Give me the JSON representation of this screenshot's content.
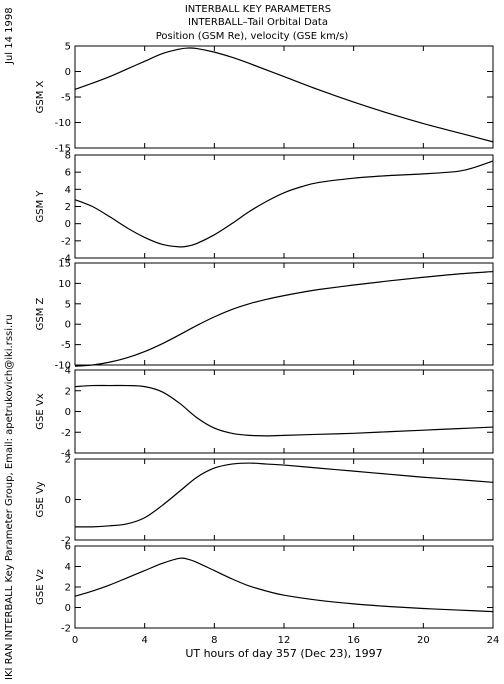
{
  "header": {
    "line1": "INTERBALL KEY PARAMETERS",
    "line2": "INTERBALL–Tail Orbital Data",
    "line3": "Position (GSM Re), velocity (GSE km/s)"
  },
  "side": {
    "date": "Jul 14 1998",
    "credit": "IKI RAN INTERBALL Key Parameter Group, Email: apetrukovich@iki.rssi.ru"
  },
  "chart_data": [
    {
      "type": "line",
      "ylabel": "GSM X",
      "xlim": [
        0,
        24
      ],
      "ylim": [
        -15,
        5
      ],
      "yticks": [
        5,
        0,
        -5,
        -10,
        -15
      ],
      "x": [
        0,
        1,
        2,
        3,
        4,
        5,
        6,
        6.5,
        7,
        8,
        9,
        10,
        12,
        14,
        16,
        18,
        20,
        22,
        24
      ],
      "series": [
        {
          "values": [
            -3.5,
            -2.3,
            -1.0,
            0.5,
            2.0,
            3.5,
            4.4,
            4.6,
            4.5,
            3.8,
            2.8,
            1.6,
            -1.0,
            -3.6,
            -6.0,
            -8.2,
            -10.2,
            -12.0,
            -13.8
          ]
        }
      ]
    },
    {
      "type": "line",
      "ylabel": "GSM Y",
      "xlim": [
        0,
        24
      ],
      "ylim": [
        -4,
        8
      ],
      "yticks": [
        8,
        6,
        4,
        2,
        0,
        -2,
        -4
      ],
      "x": [
        0,
        1,
        2,
        3,
        4,
        5,
        6,
        6.5,
        7,
        8,
        9,
        10,
        11,
        12,
        13,
        14,
        16,
        18,
        20,
        22,
        23,
        24
      ],
      "series": [
        {
          "values": [
            2.8,
            2.0,
            0.8,
            -0.5,
            -1.6,
            -2.4,
            -2.7,
            -2.6,
            -2.3,
            -1.3,
            0.0,
            1.4,
            2.6,
            3.6,
            4.3,
            4.8,
            5.3,
            5.6,
            5.8,
            6.1,
            6.6,
            7.3
          ]
        }
      ]
    },
    {
      "type": "line",
      "ylabel": "GSM Z",
      "xlim": [
        0,
        24
      ],
      "ylim": [
        -10,
        15
      ],
      "yticks": [
        15,
        10,
        5,
        0,
        -5,
        -10
      ],
      "x": [
        0,
        1,
        2,
        3,
        4,
        5,
        6,
        7,
        8,
        9,
        10,
        11,
        12,
        13,
        14,
        16,
        18,
        20,
        22,
        24
      ],
      "series": [
        {
          "values": [
            -10.3,
            -10.0,
            -9.3,
            -8.2,
            -6.7,
            -4.8,
            -2.6,
            -0.3,
            1.8,
            3.6,
            5.0,
            6.1,
            7.0,
            7.8,
            8.5,
            9.6,
            10.6,
            11.5,
            12.3,
            12.9
          ]
        }
      ]
    },
    {
      "type": "line",
      "ylabel": "GSE Vx",
      "xlim": [
        0,
        24
      ],
      "ylim": [
        -4,
        4
      ],
      "yticks": [
        4,
        2,
        0,
        -2,
        -4
      ],
      "x": [
        0,
        1,
        2,
        3,
        4,
        5,
        6,
        7,
        8,
        9,
        10,
        11,
        12,
        14,
        16,
        18,
        20,
        22,
        24
      ],
      "series": [
        {
          "values": [
            2.4,
            2.5,
            2.5,
            2.5,
            2.4,
            1.9,
            0.8,
            -0.6,
            -1.6,
            -2.1,
            -2.3,
            -2.35,
            -2.3,
            -2.2,
            -2.1,
            -1.95,
            -1.8,
            -1.65,
            -1.5
          ]
        }
      ]
    },
    {
      "type": "line",
      "ylabel": "GSE Vy",
      "xlim": [
        0,
        24
      ],
      "ylim": [
        -2,
        2
      ],
      "yticks": [
        2,
        0,
        -2
      ],
      "x": [
        0,
        1,
        2,
        3,
        4,
        5,
        6,
        7,
        8,
        9,
        10,
        11,
        12,
        14,
        16,
        18,
        20,
        22,
        24
      ],
      "series": [
        {
          "values": [
            -1.35,
            -1.35,
            -1.3,
            -1.2,
            -0.9,
            -0.3,
            0.4,
            1.1,
            1.55,
            1.75,
            1.8,
            1.75,
            1.7,
            1.55,
            1.4,
            1.25,
            1.1,
            0.98,
            0.85
          ]
        }
      ]
    },
    {
      "type": "line",
      "ylabel": "GSE Vz",
      "xlabel": "UT hours of day 357 (Dec 23), 1997",
      "xlim": [
        0,
        24
      ],
      "ylim": [
        -2,
        6
      ],
      "yticks": [
        6,
        4,
        2,
        0,
        -2
      ],
      "xticks": [
        0,
        4,
        8,
        12,
        16,
        20,
        24
      ],
      "x": [
        0,
        1,
        2,
        3,
        4,
        5,
        6,
        6.5,
        7,
        8,
        9,
        10,
        11,
        12,
        14,
        16,
        18,
        20,
        22,
        24
      ],
      "series": [
        {
          "values": [
            1.1,
            1.6,
            2.2,
            2.9,
            3.6,
            4.3,
            4.8,
            4.7,
            4.4,
            3.6,
            2.8,
            2.1,
            1.6,
            1.2,
            0.7,
            0.35,
            0.1,
            -0.1,
            -0.25,
            -0.4
          ]
        }
      ]
    }
  ]
}
